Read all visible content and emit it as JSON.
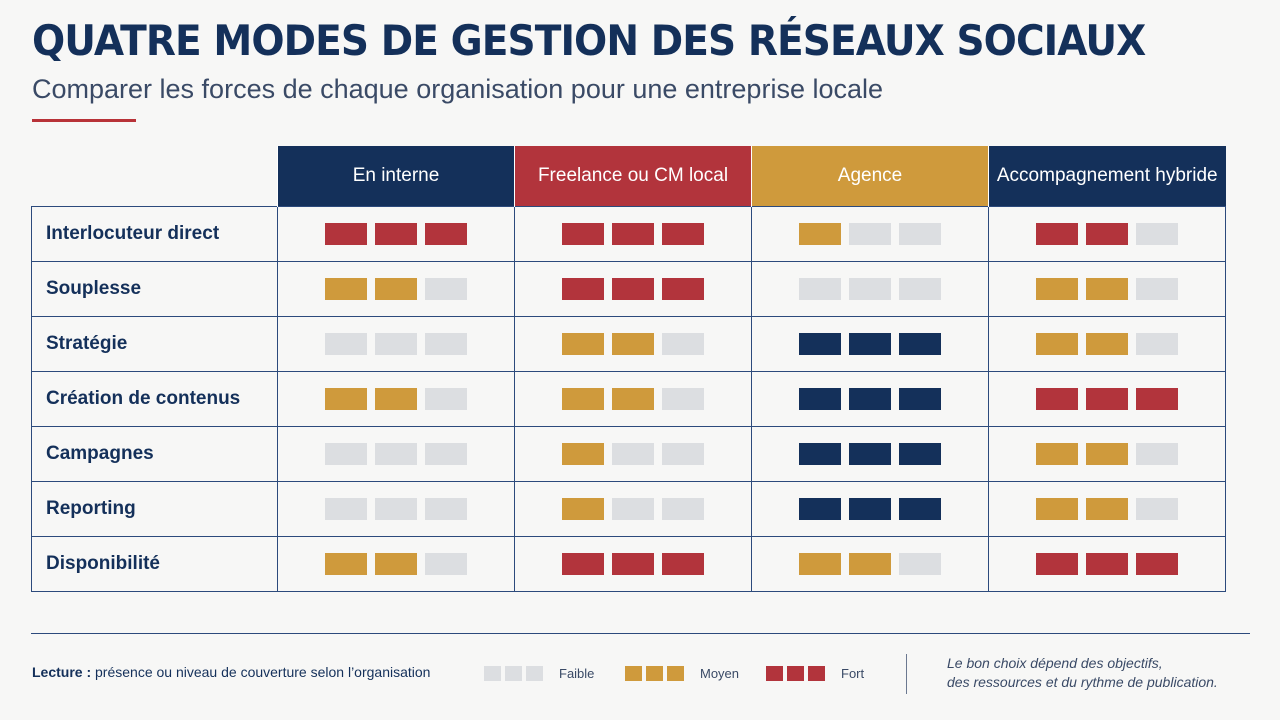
{
  "title": "QUATRE MODES DE GESTION DES RÉSEAUX SOCIAUX",
  "subtitle": "Comparer les forces de chaque organisation pour une entreprise locale",
  "colors": {
    "navy": "#14305a",
    "red": "#b2343c",
    "gold": "#cf9a3c",
    "empty": "#dcdee1"
  },
  "columns": [
    {
      "label": "En interne",
      "color": "#14305a"
    },
    {
      "label": "Freelance ou CM local",
      "color": "#b2343c"
    },
    {
      "label": "Agence",
      "color": "#cf9a3c"
    },
    {
      "label": "Accompagnement hybride",
      "color": "#14305a"
    }
  ],
  "rows": [
    {
      "label": "Interlocuteur direct",
      "levels": [
        3,
        3,
        1,
        2
      ],
      "colors": [
        "#b2343c",
        "#b2343c",
        "#cf9a3c",
        "#b2343c"
      ]
    },
    {
      "label": "Souplesse",
      "levels": [
        2,
        3,
        0,
        2
      ],
      "colors": [
        "#cf9a3c",
        "#b2343c",
        "#dcdee1",
        "#cf9a3c"
      ]
    },
    {
      "label": "Stratégie",
      "levels": [
        0,
        2,
        3,
        2
      ],
      "colors": [
        "#dcdee1",
        "#cf9a3c",
        "#14305a",
        "#cf9a3c"
      ]
    },
    {
      "label": "Création de contenus",
      "levels": [
        2,
        2,
        3,
        3
      ],
      "colors": [
        "#cf9a3c",
        "#cf9a3c",
        "#14305a",
        "#b2343c"
      ]
    },
    {
      "label": "Campagnes",
      "levels": [
        0,
        1,
        3,
        2
      ],
      "colors": [
        "#dcdee1",
        "#cf9a3c",
        "#14305a",
        "#cf9a3c"
      ]
    },
    {
      "label": "Reporting",
      "levels": [
        0,
        1,
        3,
        2
      ],
      "colors": [
        "#dcdee1",
        "#cf9a3c",
        "#14305a",
        "#cf9a3c"
      ]
    },
    {
      "label": "Disponibilité",
      "levels": [
        2,
        3,
        2,
        3
      ],
      "colors": [
        "#cf9a3c",
        "#b2343c",
        "#cf9a3c",
        "#b2343c"
      ]
    }
  ],
  "footer": {
    "lecture_label": "Lecture :",
    "lecture_text": "présence ou niveau de couverture selon l’organisation",
    "legend": [
      {
        "label": "Faible",
        "color": "#dcdee1"
      },
      {
        "label": "Moyen",
        "color": "#cf9a3c"
      },
      {
        "label": "Fort",
        "color": "#b2343c"
      }
    ],
    "note_line1": "Le bon choix dépend des objectifs,",
    "note_line2": "des ressources et du rythme de publication."
  }
}
